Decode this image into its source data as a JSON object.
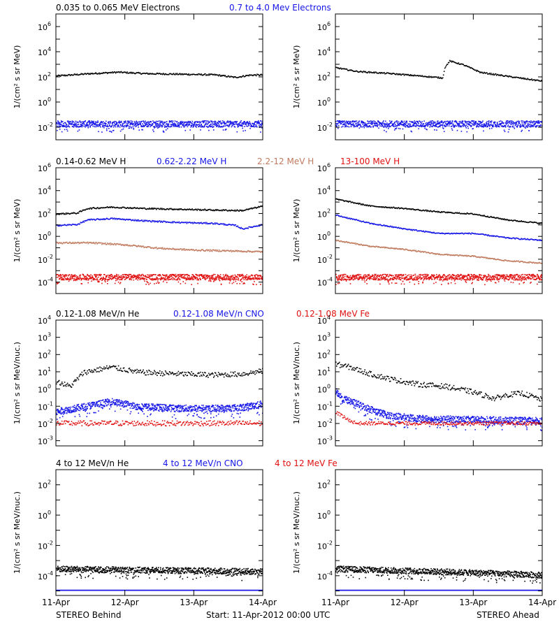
{
  "footer": {
    "left": "STEREO Behind",
    "center": "Start: 11-Apr-2012 00:00 UTC",
    "right": "STEREO Ahead"
  },
  "x_ticks": [
    "11-Apr",
    "12-Apr",
    "13-Apr",
    "14-Apr"
  ],
  "colors": {
    "black": "#000000",
    "blue": "#1515e8",
    "tan": "#c07a5e",
    "red": "#e01010"
  },
  "chart_data": [
    {
      "type": "scatter",
      "row": 1,
      "panel": "STEREO Behind",
      "ylabel": "1/(cm² s sr MeV)",
      "yscale": "log",
      "ylim": [
        0.001,
        10000000
      ],
      "yticks": [
        0.01,
        1,
        100,
        10000,
        1000000
      ],
      "xlim": [
        0,
        3
      ],
      "xtick_labels": [
        "11-Apr",
        "12-Apr",
        "13-Apr",
        "14-Apr"
      ],
      "series": [
        {
          "name": "0.035 to 0.065 MeV Electrons",
          "color": "black",
          "spread": 0.06,
          "points": [
            [
              0,
              130
            ],
            [
              0.5,
              200
            ],
            [
              0.9,
              260
            ],
            [
              1.3,
              200
            ],
            [
              1.8,
              180
            ],
            [
              2.3,
              160
            ],
            [
              2.6,
              100
            ],
            [
              2.8,
              150
            ],
            [
              3.0,
              160
            ]
          ]
        },
        {
          "name": "0.7 to 4.0 Mev Electrons",
          "color": "blue",
          "spread": 0.25,
          "points": [
            [
              0,
              0.02
            ],
            [
              3.0,
              0.02
            ]
          ]
        }
      ]
    },
    {
      "type": "scatter",
      "row": 1,
      "panel": "STEREO Ahead",
      "ylabel": "1/(cm² s sr MeV)",
      "yscale": "log",
      "ylim": [
        0.001,
        10000000
      ],
      "yticks": [
        0.01,
        1,
        100,
        10000,
        1000000
      ],
      "xlim": [
        0,
        3
      ],
      "xtick_labels": [
        "11-Apr",
        "12-Apr",
        "13-Apr",
        "14-Apr"
      ],
      "series": [
        {
          "name": "",
          "color": "black",
          "spread": 0.05,
          "points": [
            [
              0,
              600
            ],
            [
              0.3,
              300
            ],
            [
              0.8,
              200
            ],
            [
              1.3,
              120
            ],
            [
              1.55,
              90
            ],
            [
              1.58,
              600
            ],
            [
              1.65,
              2000
            ],
            [
              1.85,
              1000
            ],
            [
              2.1,
              250
            ],
            [
              2.5,
              120
            ],
            [
              3.0,
              50
            ]
          ]
        },
        {
          "name": "",
          "color": "blue",
          "spread": 0.25,
          "points": [
            [
              0,
              0.02
            ],
            [
              3.0,
              0.02
            ]
          ]
        }
      ]
    },
    {
      "type": "scatter",
      "row": 2,
      "panel": "STEREO Behind",
      "ylabel": "1/(cm² s sr MeV)",
      "yscale": "log",
      "ylim": [
        1e-05,
        1000000
      ],
      "yticks": [
        0.0001,
        0.01,
        1,
        100,
        10000,
        1000000
      ],
      "xlim": [
        0,
        3
      ],
      "xtick_labels": [
        "11-Apr",
        "12-Apr",
        "13-Apr",
        "14-Apr"
      ],
      "series": [
        {
          "name": "0.14-0.62 MeV H",
          "color": "black",
          "spread": 0.06,
          "points": [
            [
              0,
              100
            ],
            [
              0.3,
              120
            ],
            [
              0.45,
              300
            ],
            [
              0.8,
              400
            ],
            [
              1.3,
              300
            ],
            [
              1.8,
              260
            ],
            [
              2.3,
              220
            ],
            [
              2.7,
              200
            ],
            [
              3.0,
              500
            ]
          ]
        },
        {
          "name": "0.62-2.22 MeV H",
          "color": "blue",
          "spread": 0.06,
          "points": [
            [
              0,
              10
            ],
            [
              0.3,
              12
            ],
            [
              0.45,
              30
            ],
            [
              0.8,
              40
            ],
            [
              1.3,
              25
            ],
            [
              1.8,
              18
            ],
            [
              2.3,
              15
            ],
            [
              2.6,
              10
            ],
            [
              2.7,
              5
            ],
            [
              3.0,
              12
            ]
          ]
        },
        {
          "name": "2.2-12 MeV H",
          "color": "tan",
          "spread": 0.07,
          "points": [
            [
              0,
              0.3
            ],
            [
              0.5,
              0.3
            ],
            [
              1.0,
              0.2
            ],
            [
              1.5,
              0.1
            ],
            [
              2.0,
              0.07
            ],
            [
              2.5,
              0.06
            ],
            [
              3.0,
              0.05
            ]
          ]
        },
        {
          "name": "13-100 MeV H",
          "color": "red",
          "spread": 0.25,
          "points": [
            [
              0,
              0.0003
            ],
            [
              3.0,
              0.0003
            ]
          ]
        }
      ]
    },
    {
      "type": "scatter",
      "row": 2,
      "panel": "STEREO Ahead",
      "ylabel": "1/(cm² s sr MeV)",
      "yscale": "log",
      "ylim": [
        1e-05,
        1000000
      ],
      "yticks": [
        0.0001,
        0.01,
        1,
        100,
        10000,
        1000000
      ],
      "xlim": [
        0,
        3
      ],
      "xtick_labels": [
        "11-Apr",
        "12-Apr",
        "13-Apr",
        "14-Apr"
      ],
      "series": [
        {
          "name": "",
          "color": "black",
          "spread": 0.05,
          "points": [
            [
              0,
              2000
            ],
            [
              0.5,
              500
            ],
            [
              1.0,
              300
            ],
            [
              1.5,
              150
            ],
            [
              2.0,
              100
            ],
            [
              2.5,
              30
            ],
            [
              3.0,
              15
            ]
          ]
        },
        {
          "name": "",
          "color": "blue",
          "spread": 0.05,
          "points": [
            [
              0,
              80
            ],
            [
              0.5,
              15
            ],
            [
              1.0,
              5
            ],
            [
              1.5,
              2
            ],
            [
              2.0,
              2
            ],
            [
              2.5,
              0.8
            ],
            [
              3.0,
              0.5
            ]
          ]
        },
        {
          "name": "",
          "color": "tan",
          "spread": 0.05,
          "points": [
            [
              0,
              0.5
            ],
            [
              0.5,
              0.15
            ],
            [
              1.0,
              0.08
            ],
            [
              1.5,
              0.03
            ],
            [
              2.0,
              0.02
            ],
            [
              2.5,
              0.008
            ],
            [
              3.0,
              0.005
            ]
          ]
        },
        {
          "name": "",
          "color": "red",
          "spread": 0.25,
          "points": [
            [
              0,
              0.0003
            ],
            [
              3.0,
              0.0003
            ]
          ]
        }
      ]
    },
    {
      "type": "scatter",
      "row": 3,
      "panel": "STEREO Behind",
      "ylabel": "1/(cm² s sr MeV/nuc.)",
      "yscale": "log",
      "ylim": [
        0.0005,
        10000
      ],
      "yticks": [
        0.001,
        0.01,
        0.1,
        1,
        10,
        100,
        1000,
        10000
      ],
      "xlim": [
        0,
        3
      ],
      "xtick_labels": [
        "11-Apr",
        "12-Apr",
        "13-Apr",
        "14-Apr"
      ],
      "series": [
        {
          "name": "0.12-1.08 MeV/n He",
          "color": "black",
          "spread": 0.15,
          "points": [
            [
              0,
              3
            ],
            [
              0.2,
              1.5
            ],
            [
              0.4,
              10
            ],
            [
              0.8,
              20
            ],
            [
              1.2,
              10
            ],
            [
              1.8,
              8
            ],
            [
              2.3,
              7
            ],
            [
              2.7,
              8
            ],
            [
              3.0,
              12
            ]
          ]
        },
        {
          "name": "0.12-1.08 MeV/n CNO",
          "color": "blue",
          "spread": 0.2,
          "points": [
            [
              0,
              0.05
            ],
            [
              0.4,
              0.1
            ],
            [
              0.8,
              0.2
            ],
            [
              1.2,
              0.1
            ],
            [
              1.8,
              0.08
            ],
            [
              2.3,
              0.08
            ],
            [
              2.7,
              0.09
            ],
            [
              3.0,
              0.15
            ]
          ]
        },
        {
          "name": "0.12-1.08 MeV Fe",
          "color": "red",
          "spread": 0.15,
          "points": [
            [
              0,
              0.011
            ],
            [
              3.0,
              0.011
            ]
          ]
        }
      ]
    },
    {
      "type": "scatter",
      "row": 3,
      "panel": "STEREO Ahead",
      "ylabel": "1/(cm² s sr MeV/nuc.)",
      "yscale": "log",
      "ylim": [
        0.0005,
        10000
      ],
      "yticks": [
        0.001,
        0.01,
        0.1,
        1,
        10,
        100,
        1000,
        10000
      ],
      "xlim": [
        0,
        3
      ],
      "xtick_labels": [
        "11-Apr",
        "12-Apr",
        "13-Apr",
        "14-Apr"
      ],
      "series": [
        {
          "name": "",
          "color": "black",
          "spread": 0.15,
          "points": [
            [
              0,
              30
            ],
            [
              0.2,
              20
            ],
            [
              0.5,
              8
            ],
            [
              0.8,
              4
            ],
            [
              1.2,
              2
            ],
            [
              1.6,
              1.5
            ],
            [
              2.0,
              0.7
            ],
            [
              2.3,
              0.3
            ],
            [
              2.5,
              0.5
            ],
            [
              2.7,
              0.6
            ],
            [
              3.0,
              0.25
            ]
          ]
        },
        {
          "name": "",
          "color": "blue",
          "spread": 0.2,
          "points": [
            [
              0,
              0.8
            ],
            [
              0.1,
              0.3
            ],
            [
              0.3,
              0.15
            ],
            [
              0.6,
              0.05
            ],
            [
              0.8,
              0.03
            ],
            [
              1.2,
              0.02
            ],
            [
              3.0,
              0.015
            ]
          ]
        },
        {
          "name": "",
          "color": "red",
          "spread": 0.1,
          "points": [
            [
              0,
              0.05
            ],
            [
              0.15,
              0.02
            ],
            [
              0.3,
              0.011
            ],
            [
              3.0,
              0.011
            ]
          ]
        }
      ]
    },
    {
      "type": "scatter",
      "row": 4,
      "panel": "STEREO Behind",
      "ylabel": "1/(cm² s sr MeV/nuc.)",
      "yscale": "log",
      "ylim": [
        5e-06,
        1000
      ],
      "yticks": [
        0.0001,
        0.01,
        1,
        100
      ],
      "xlim": [
        0,
        3
      ],
      "xtick_labels": [
        "11-Apr",
        "12-Apr",
        "13-Apr",
        "14-Apr"
      ],
      "series": [
        {
          "name": "4 to 12 MeV/n He",
          "color": "black",
          "spread": 0.2,
          "points": [
            [
              0,
              0.0003
            ],
            [
              3.0,
              0.0002
            ]
          ]
        },
        {
          "name": "4 to 12 MeV/n CNO",
          "color": "blue",
          "spread": 0.0,
          "points": [
            [
              0,
              1.2e-05
            ],
            [
              3.0,
              1.2e-05
            ]
          ]
        },
        {
          "name": "4 to 12 MeV Fe",
          "color": "red",
          "spread": 0.0,
          "points": []
        }
      ]
    },
    {
      "type": "scatter",
      "row": 4,
      "panel": "STEREO Ahead",
      "ylabel": "1/(cm² s sr MeV/nuc.)",
      "yscale": "log",
      "ylim": [
        5e-06,
        1000
      ],
      "yticks": [
        0.0001,
        0.01,
        1,
        100
      ],
      "xlim": [
        0,
        3
      ],
      "xtick_labels": [
        "11-Apr",
        "12-Apr",
        "13-Apr",
        "14-Apr"
      ],
      "series": [
        {
          "name": "",
          "color": "black",
          "spread": 0.2,
          "points": [
            [
              0,
              0.0003
            ],
            [
              1.5,
              0.0002
            ],
            [
              3.0,
              0.00012
            ]
          ]
        },
        {
          "name": "",
          "color": "blue",
          "spread": 0.0,
          "points": [
            [
              0,
              1.2e-05
            ],
            [
              3.0,
              1.2e-05
            ]
          ]
        }
      ]
    }
  ]
}
